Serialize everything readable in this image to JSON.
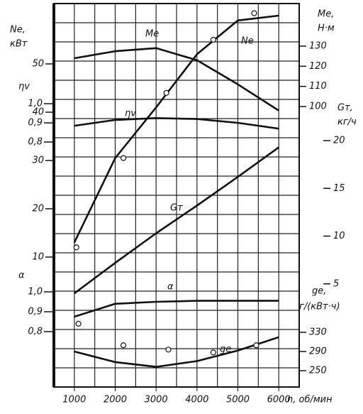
{
  "chart_data": [
    {
      "type": "line",
      "y_label": [
        "Nе,",
        "кВт"
      ],
      "ylim": [
        0,
        60
      ],
      "yticks": [
        10,
        20,
        30,
        40,
        50
      ],
      "x_label": "n, об/мин",
      "xlim": [
        500,
        6500
      ],
      "xticks": [
        1000,
        2000,
        3000,
        4000,
        5000,
        6000
      ],
      "x": [
        1000,
        2000,
        3000,
        4000,
        5000,
        6000
      ],
      "series": [
        {
          "name": "Nе",
          "color": "#111111",
          "values": [
            13,
            30.5,
            41,
            52,
            59,
            60
          ]
        }
      ],
      "points": {
        "x": [
          1050,
          2200,
          3250,
          4400,
          5400
        ],
        "values": [
          12,
          30.5,
          44,
          55,
          60.5
        ]
      }
    },
    {
      "type": "line",
      "y_label": [
        "ηv"
      ],
      "ylim": [
        0.8,
        1.0
      ],
      "yticks": [
        {
          "value": 0.8,
          "label": "0,8"
        },
        {
          "value": 0.9,
          "label": "0,9"
        },
        {
          "value": 1.0,
          "label": "1,0"
        }
      ],
      "x": [
        1000,
        2000,
        3000,
        4000,
        5000,
        6000
      ],
      "series": [
        {
          "name": "ηv",
          "color": "#111111",
          "values": [
            0.885,
            0.915,
            0.925,
            0.92,
            0.9,
            0.87
          ]
        }
      ]
    },
    {
      "type": "line",
      "y_label": [
        "α"
      ],
      "ylim": [
        0.8,
        1.0
      ],
      "yticks": [
        {
          "value": 0.8,
          "label": "0,8"
        },
        {
          "value": 0.9,
          "label": "0,9"
        },
        {
          "value": 1.0,
          "label": "1,0"
        }
      ],
      "x": [
        1000,
        2000,
        3000,
        4000,
        5000,
        6000
      ],
      "series": [
        {
          "name": "α",
          "color": "#111111",
          "values": [
            0.875,
            0.94,
            0.95,
            0.955,
            0.955,
            0.955
          ]
        }
      ]
    },
    {
      "type": "line",
      "y_label": [
        "Mе,",
        "Н·м"
      ],
      "ylim": [
        100,
        130
      ],
      "yticks": [
        100,
        110,
        120,
        130
      ],
      "x": [
        1000,
        2000,
        3000,
        4000,
        5000,
        6000
      ],
      "series": [
        {
          "name": "Mе",
          "color": "#111111",
          "values": [
            124,
            127.5,
            129,
            123,
            111,
            98
          ]
        }
      ]
    },
    {
      "type": "line",
      "y_label": [
        "Gт,",
        "кг/ч"
      ],
      "ylim": [
        0,
        20
      ],
      "yticks": [
        5,
        10,
        15,
        20
      ],
      "x": [
        1000,
        2000,
        3000,
        4000,
        5000,
        6000
      ],
      "series": [
        {
          "name": "Gт",
          "color": "#111111",
          "values": [
            4,
            7.2,
            10.3,
            13.2,
            16.2,
            19.3
          ]
        }
      ]
    },
    {
      "type": "line",
      "y_label": [
        "gе,",
        "г/(кВт·ч)"
      ],
      "ylim": [
        250,
        330
      ],
      "yticks": [
        250,
        290,
        330
      ],
      "x": [
        1000,
        2000,
        3000,
        4000,
        5000,
        6000
      ],
      "series": [
        {
          "name": "gе",
          "color": "#111111",
          "values": [
            290,
            268,
            258,
            270,
            292,
            320
          ]
        }
      ],
      "points": {
        "x": [
          1100,
          2200,
          3300,
          4400,
          5450
        ],
        "values": [
          348,
          303,
          294,
          288,
          303
        ]
      }
    }
  ]
}
